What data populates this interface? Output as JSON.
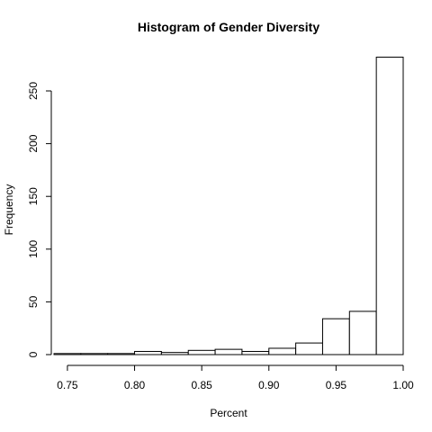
{
  "chart_data": {
    "type": "bar",
    "title": "Histogram of Gender Diversity",
    "xlabel": "Percent",
    "ylabel": "Frequency",
    "xlim": [
      0.74,
      1.0
    ],
    "ylim": [
      0,
      285
    ],
    "x_ticks": [
      0.75,
      0.8,
      0.85,
      0.9,
      0.95,
      1.0
    ],
    "x_tick_labels": [
      "0.75",
      "0.80",
      "0.85",
      "0.90",
      "0.95",
      "1.00"
    ],
    "y_ticks": [
      0,
      50,
      100,
      150,
      200,
      250
    ],
    "y_tick_labels": [
      "0",
      "50",
      "100",
      "150",
      "200",
      "250"
    ],
    "bin_edges": [
      0.74,
      0.76,
      0.78,
      0.8,
      0.82,
      0.84,
      0.86,
      0.88,
      0.9,
      0.92,
      0.94,
      0.96,
      0.98,
      1.0
    ],
    "values": [
      1,
      1,
      1,
      3,
      2,
      4,
      5,
      3,
      6,
      11,
      34,
      41,
      282
    ],
    "bar_fill": "#ffffff",
    "bar_stroke": "#000000",
    "grid": false
  }
}
